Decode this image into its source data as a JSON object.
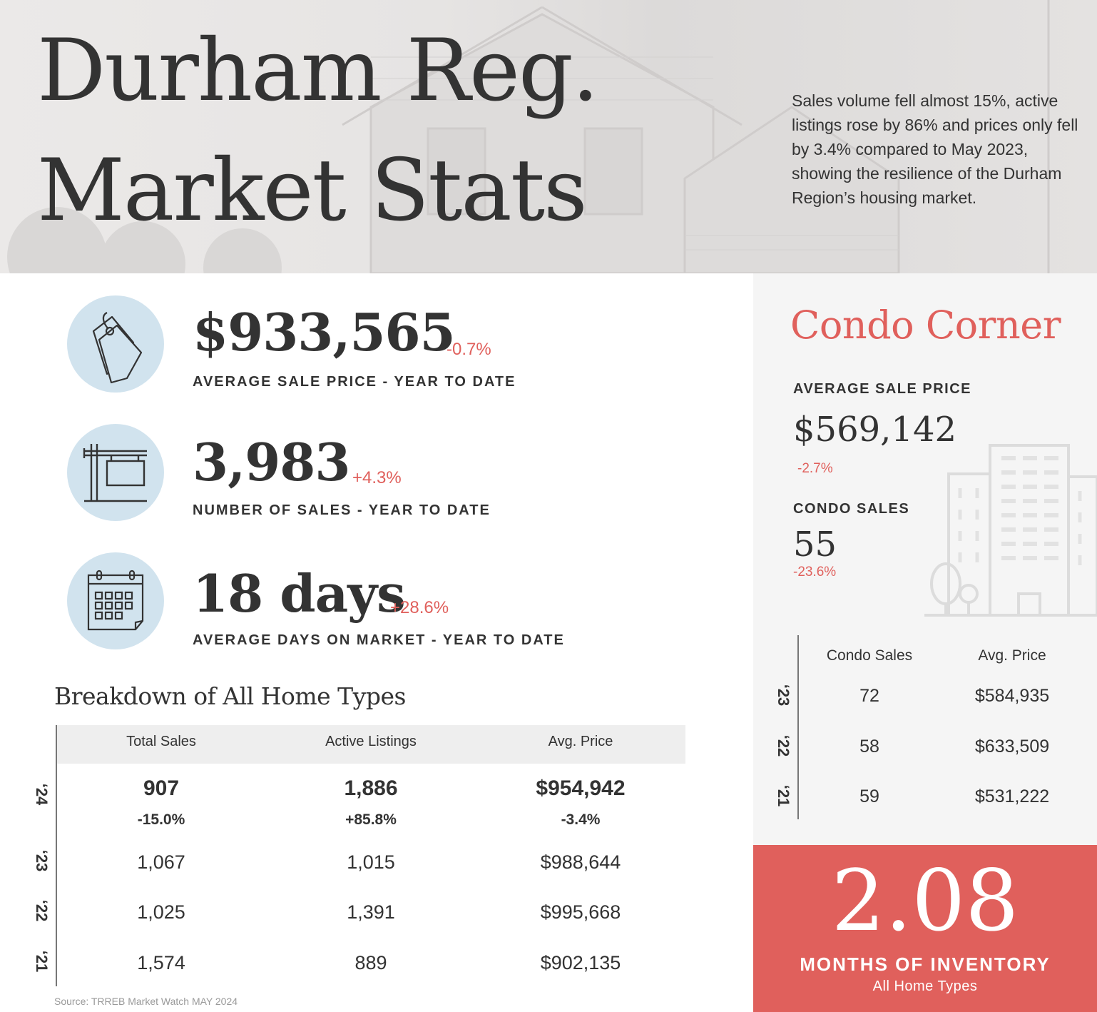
{
  "header": {
    "title_line1": "Durham Reg.",
    "title_line2": "Market Stats",
    "intro": "Sales volume fell almost 15%, active listings rose by 86% and prices only fell by 3.4% compared to May 2023, showing the resilience of the Durham Region’s housing market."
  },
  "stats": [
    {
      "value": "$933,565",
      "change": "-0.7%",
      "label": "AVERAGE SALE PRICE - YEAR TO DATE",
      "icon": "price-tag-icon"
    },
    {
      "value": "3,983",
      "change": "+4.3%",
      "label": "NUMBER OF SALES - YEAR TO DATE",
      "icon": "for-sale-sign-icon"
    },
    {
      "value": "18 days",
      "change": "+28.6%",
      "label": "AVERAGE DAYS ON MARKET - YEAR TO DATE",
      "icon": "calendar-icon"
    }
  ],
  "breakdown": {
    "title": "Breakdown of All Home Types",
    "columns": [
      "Total Sales",
      "Active Listings",
      "Avg. Price"
    ],
    "rows": [
      {
        "year": "‘24",
        "values": [
          "907",
          "1,886",
          "$954,942"
        ],
        "changes": [
          "-15.0%",
          "+85.8%",
          "-3.4%"
        ]
      },
      {
        "year": "‘23",
        "values": [
          "1,067",
          "1,015",
          "$988,644"
        ]
      },
      {
        "year": "‘22",
        "values": [
          "1,025",
          "1,391",
          "$995,668"
        ]
      },
      {
        "year": "‘21",
        "values": [
          "1,574",
          "889",
          "$902,135"
        ]
      }
    ],
    "source": "Source: TRREB Market Watch MAY 2024"
  },
  "condo": {
    "title": "Condo Corner",
    "avg_price_label": "AVERAGE SALE PRICE",
    "avg_price": "$569,142",
    "avg_price_change": "-2.7%",
    "sales_label": "CONDO SALES",
    "sales": "55",
    "sales_change": "-23.6%",
    "icon": "buildings-icon",
    "table": {
      "columns": [
        "Condo Sales",
        "Avg. Price"
      ],
      "rows": [
        {
          "year": "‘23",
          "values": [
            "72",
            "$584,935"
          ]
        },
        {
          "year": "‘22",
          "values": [
            "58",
            "$633,509"
          ]
        },
        {
          "year": "‘21",
          "values": [
            "59",
            "$531,222"
          ]
        }
      ]
    }
  },
  "inventory": {
    "value": "2.08",
    "label": "MONTHS OF INVENTORY",
    "sublabel": "All Home Types"
  },
  "colors": {
    "accent": "#e0605c",
    "icon_circle": "#d1e3ee",
    "text": "#333333"
  }
}
